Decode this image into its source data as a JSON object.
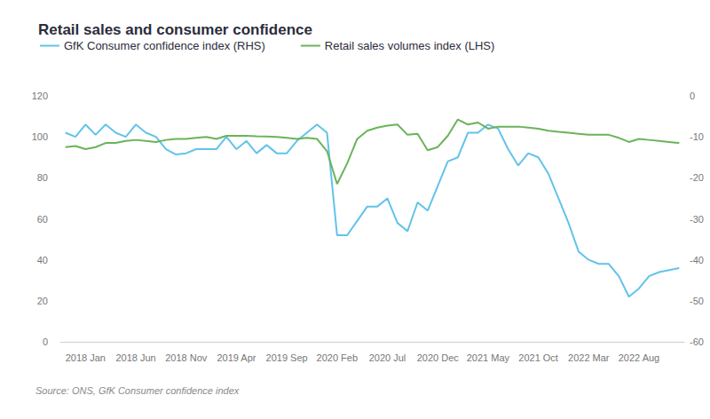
{
  "chart_data": {
    "type": "line",
    "title": "Retail sales and consumer confidence",
    "source": "Source: ONS, GfK Consumer confidence index",
    "categories": [
      null,
      null,
      "2018 Jan",
      null,
      null,
      null,
      null,
      "2018 Jun",
      null,
      null,
      null,
      null,
      "2018 Nov",
      null,
      null,
      null,
      null,
      "2019 Apr",
      null,
      null,
      null,
      null,
      "2019 Sep",
      null,
      null,
      null,
      null,
      "2020 Feb",
      null,
      null,
      null,
      null,
      "2020 Jul",
      null,
      null,
      null,
      null,
      "2020 Dec",
      null,
      null,
      null,
      null,
      "2021 May",
      null,
      null,
      null,
      null,
      "2021 Oct",
      null,
      null,
      null,
      null,
      "2022 Mar",
      null,
      null,
      null,
      null,
      "2022 Aug",
      null,
      null,
      null,
      null
    ],
    "series": [
      {
        "name": "GfK Consumer confidence index (RHS)",
        "color": "#62c3ea",
        "axis": "y2",
        "values": [
          -9,
          -10,
          -7,
          -9.5,
          -7,
          -9,
          -10,
          -7,
          -9,
          -10,
          -13,
          -14.3,
          -14,
          -13,
          -13,
          -13,
          -10,
          -13,
          -11,
          -14,
          -12,
          -14,
          -14,
          -11,
          -9,
          -7,
          -9,
          -34,
          -34,
          -30.5,
          -27,
          -27,
          -25,
          -31,
          -33,
          -26,
          -28,
          -22,
          -16,
          -15,
          -9,
          -9,
          -7,
          -8,
          -13,
          -17,
          -14,
          -15,
          -19,
          -25,
          -31,
          -38,
          -40,
          -41,
          -41,
          -44,
          -49,
          -47,
          -44,
          -43,
          -42.5,
          -42
        ]
      },
      {
        "name": "Retail sales volumes index (LHS)",
        "color": "#6ab35a",
        "values": [
          95,
          95.5,
          94,
          95,
          97,
          97,
          98,
          98.5,
          98,
          97.5,
          98.5,
          99,
          99,
          99.5,
          100,
          99,
          100.5,
          100.5,
          100.5,
          100.3,
          100.2,
          100,
          99.5,
          99,
          99.5,
          99,
          93,
          77,
          87,
          99,
          103,
          104.5,
          105.5,
          106,
          101,
          101.5,
          93.5,
          95,
          100.5,
          108.5,
          106,
          107,
          104,
          105,
          105,
          105,
          104.5,
          104,
          103,
          102.5,
          102,
          101.5,
          101,
          101,
          101,
          99.5,
          97.5,
          99,
          98.5,
          98,
          97.5,
          97
        ]
      }
    ],
    "ylim": [
      0,
      120
    ],
    "yticks": [
      0,
      20,
      40,
      60,
      80,
      100,
      120
    ],
    "y2lim": [
      -60,
      0
    ],
    "y2ticks": [
      -60,
      -50,
      -40,
      -30,
      -20,
      -10,
      0
    ],
    "grid": false,
    "legend": "top left"
  }
}
